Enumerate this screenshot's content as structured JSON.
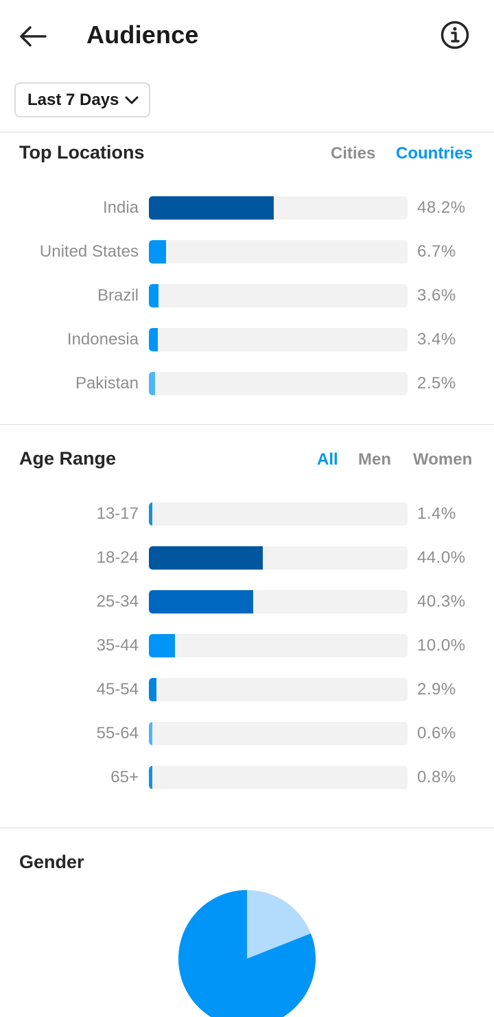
{
  "header": {
    "title": "Audience",
    "back_icon": "arrow-left-icon",
    "info_icon": "info-icon"
  },
  "filter": {
    "selected_range": "Last 7 Days",
    "icon": "chevron-down-icon"
  },
  "top_locations": {
    "title": "Top Locations",
    "tabs": [
      {
        "label": "Cities",
        "active": false
      },
      {
        "label": "Countries",
        "active": true
      }
    ],
    "items": [
      {
        "label": "India",
        "percent_text": "48.2%",
        "value": 48.2,
        "color": "#00579f"
      },
      {
        "label": "United States",
        "percent_text": "6.7%",
        "value": 6.7,
        "color": "#0095f6"
      },
      {
        "label": "Brazil",
        "percent_text": "3.6%",
        "value": 3.6,
        "color": "#0095f6"
      },
      {
        "label": "Indonesia",
        "percent_text": "3.4%",
        "value": 3.4,
        "color": "#0095f6"
      },
      {
        "label": "Pakistan",
        "percent_text": "2.5%",
        "value": 2.5,
        "color": "#4db5f9"
      }
    ]
  },
  "age_range": {
    "title": "Age Range",
    "tabs": [
      {
        "label": "All",
        "active": true
      },
      {
        "label": "Men",
        "active": false
      },
      {
        "label": "Women",
        "active": false
      }
    ],
    "items": [
      {
        "label": "13-17",
        "percent_text": "1.4%",
        "value": 1.4,
        "color": "#1a8fe0"
      },
      {
        "label": "18-24",
        "percent_text": "44.0%",
        "value": 44.0,
        "color": "#00579f"
      },
      {
        "label": "25-34",
        "percent_text": "40.3%",
        "value": 40.3,
        "color": "#0068c0"
      },
      {
        "label": "35-44",
        "percent_text": "10.0%",
        "value": 10.0,
        "color": "#0095f6"
      },
      {
        "label": "45-54",
        "percent_text": "2.9%",
        "value": 2.9,
        "color": "#0086dd"
      },
      {
        "label": "55-64",
        "percent_text": "0.6%",
        "value": 0.6,
        "color": "#4db5f9"
      },
      {
        "label": "65+",
        "percent_text": "0.8%",
        "value": 0.8,
        "color": "#1a8fe0"
      }
    ]
  },
  "gender": {
    "title": "Gender",
    "chart_data": {
      "type": "pie",
      "slices": [
        {
          "value": 19,
          "color": "#b3dbfb"
        },
        {
          "value": 81,
          "color": "#0095f6"
        }
      ]
    }
  }
}
